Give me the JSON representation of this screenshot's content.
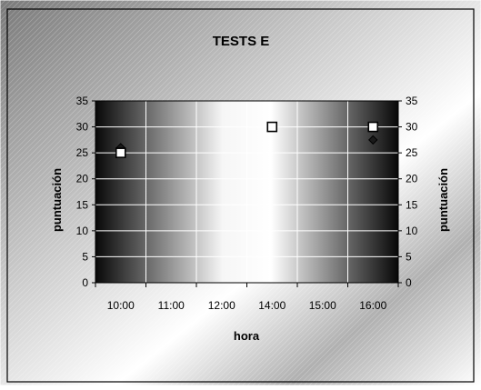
{
  "chart_data": {
    "type": "scatter",
    "title": "TESTS E",
    "xlabel": "hora",
    "ylabel": "puntuación",
    "y2label": "puntuación",
    "categories": [
      "10:00",
      "11:00",
      "12:00",
      "14:00",
      "15:00",
      "16:00"
    ],
    "yticks": [
      0,
      5,
      10,
      15,
      20,
      25,
      30,
      35
    ],
    "ylim": [
      0,
      35
    ],
    "grid": true,
    "legend": "none",
    "series": [
      {
        "marker": "diamond",
        "color": "#1a1a1a",
        "points": [
          {
            "x": "10:00",
            "y": 26
          },
          {
            "x": "16:00",
            "y": 27.5
          }
        ]
      },
      {
        "marker": "square",
        "color": "#ffffff",
        "points": [
          {
            "x": "10:00",
            "y": 25
          },
          {
            "x": "14:00",
            "y": 30
          },
          {
            "x": "16:00",
            "y": 30
          }
        ]
      }
    ]
  }
}
